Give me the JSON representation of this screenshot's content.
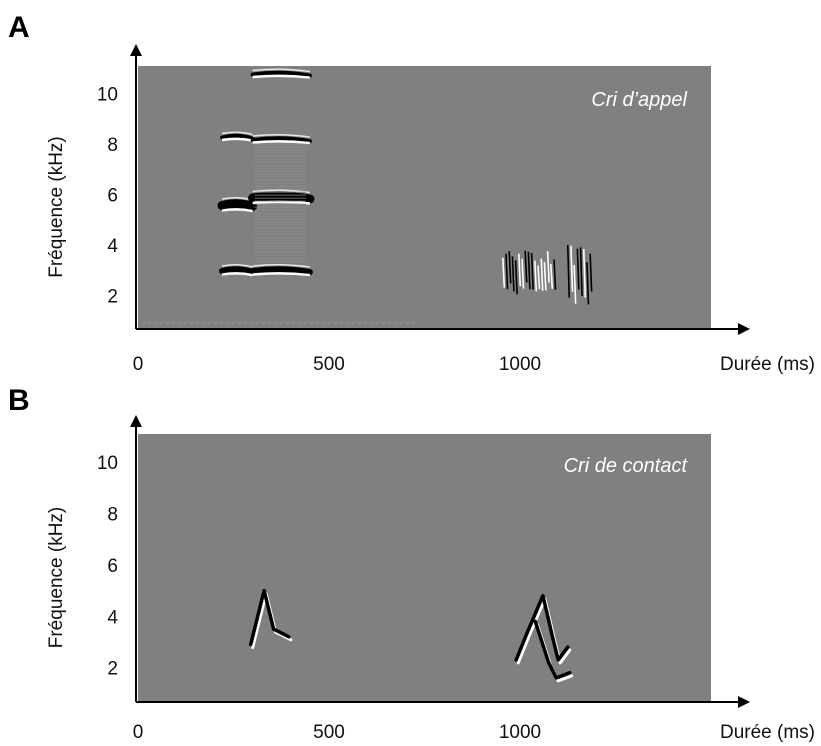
{
  "chart_data": [
    {
      "panel": "A",
      "type": "spectrogram",
      "label": "Cri d’appel",
      "ylabel": "Fréquence (kHz)",
      "xlabel": "Durée (ms)",
      "y_ticks": [
        10,
        8,
        6,
        4,
        2
      ],
      "x_ticks": [
        0,
        500,
        1000
      ],
      "xlim": [
        0,
        1500
      ],
      "ylim": [
        0.7,
        11.1
      ],
      "background_color": "#808080",
      "harmonic_bands": [
        {
          "x_start": 220,
          "x_end": 300,
          "freqs_khz": [
            3.0,
            5.6,
            8.3
          ]
        },
        {
          "x_start": 300,
          "x_end": 450,
          "freqs_khz": [
            3.0,
            5.9,
            8.2,
            10.8
          ]
        }
      ],
      "noise_bursts": [
        {
          "x_start": 955,
          "x_end": 1090,
          "f_low_khz": 2.0,
          "f_high_khz": 3.8
        },
        {
          "x_start": 1125,
          "x_end": 1190,
          "f_low_khz": 1.6,
          "f_high_khz": 4.0
        }
      ]
    },
    {
      "panel": "B",
      "type": "spectrogram",
      "label": "Cri de contact",
      "ylabel": "Fréquence (kHz)",
      "xlabel": "Durée (ms)",
      "y_ticks": [
        10,
        8,
        6,
        4,
        2
      ],
      "x_ticks": [
        0,
        500,
        1000
      ],
      "xlim": [
        0,
        1500
      ],
      "ylim": [
        0.7,
        11.1
      ],
      "background_color": "#808080",
      "chirps": [
        {
          "points": [
            [
              295,
              2.9
            ],
            [
              330,
              5.0
            ],
            [
              355,
              3.5
            ],
            [
              395,
              3.2
            ]
          ]
        },
        {
          "points": [
            [
              990,
              2.3
            ],
            [
              1020,
              3.4
            ],
            [
              1060,
              4.8
            ],
            [
              1085,
              3.2
            ],
            [
              1100,
              2.3
            ],
            [
              1125,
              2.8
            ]
          ]
        },
        {
          "points": [
            [
              1040,
              3.8
            ],
            [
              1075,
              2.2
            ],
            [
              1095,
              1.6
            ],
            [
              1130,
              1.8
            ]
          ]
        }
      ]
    }
  ]
}
